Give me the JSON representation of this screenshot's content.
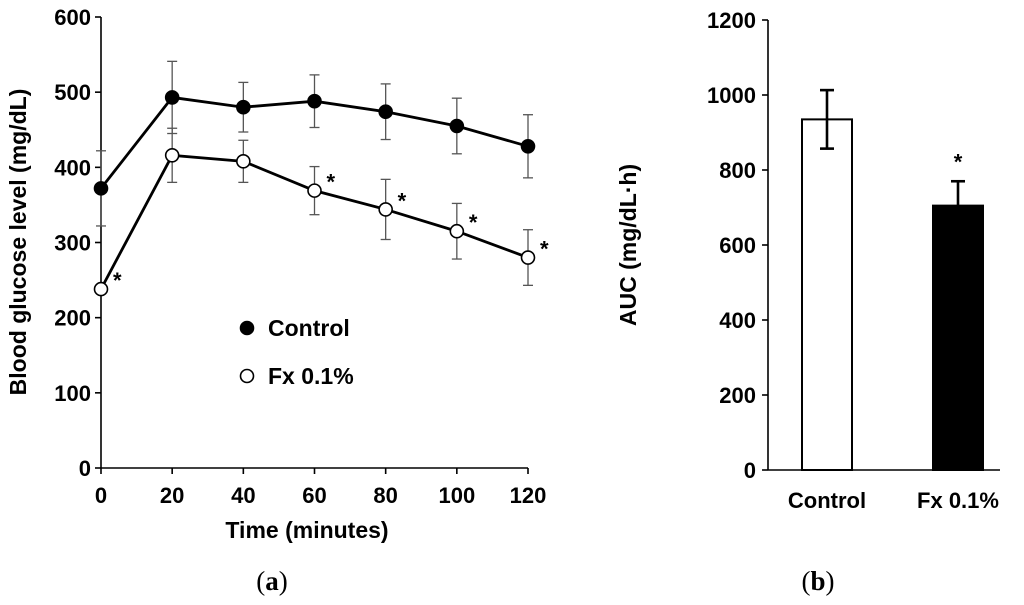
{
  "chart_data": [
    {
      "type": "line",
      "panel_label": "a",
      "xlabel": "Time (minutes)",
      "ylabel": "Blood glucose level (mg/dL)",
      "xlim": [
        0,
        120
      ],
      "ylim": [
        0,
        600
      ],
      "x_ticks": [
        0,
        20,
        40,
        60,
        80,
        100,
        120
      ],
      "y_ticks": [
        0,
        100,
        200,
        300,
        400,
        500,
        600
      ],
      "x": [
        0,
        20,
        40,
        60,
        80,
        100,
        120
      ],
      "series": [
        {
          "name": "Control",
          "marker": "filled-circle",
          "values": [
            372,
            493,
            480,
            488,
            474,
            455,
            428
          ],
          "errors": [
            50,
            48,
            33,
            35,
            37,
            37,
            42
          ],
          "significance": [
            "",
            "",
            "",
            "",
            "",
            "",
            ""
          ]
        },
        {
          "name": "Fx 0.1%",
          "marker": "open-circle",
          "values": [
            238,
            416,
            408,
            369,
            344,
            315,
            280
          ],
          "errors": [
            0,
            36,
            28,
            32,
            40,
            37,
            37
          ],
          "significance": [
            "*",
            "",
            "",
            "*",
            "*",
            "*",
            "*"
          ]
        }
      ],
      "legend": [
        "Control",
        "Fx 0.1%"
      ]
    },
    {
      "type": "bar",
      "panel_label": "b",
      "ylabel": "AUC (mg/dL·h)",
      "ylim": [
        0,
        1200
      ],
      "y_ticks": [
        0,
        200,
        400,
        600,
        800,
        1000,
        1200
      ],
      "categories": [
        "Control",
        "Fx 0.1%"
      ],
      "values": [
        935,
        705
      ],
      "errors": [
        78,
        65
      ],
      "fills": [
        "#ffffff",
        "#000000"
      ],
      "significance": [
        "",
        "*"
      ]
    }
  ]
}
